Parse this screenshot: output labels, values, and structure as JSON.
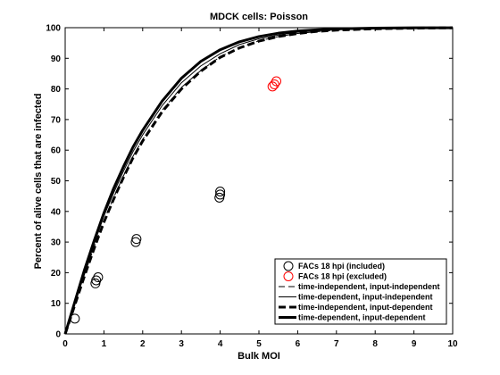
{
  "chart_data": {
    "type": "line",
    "title": "MDCK cells: Poisson",
    "xlabel": "Bulk MOI",
    "ylabel": "Percent of alive cells that are infected",
    "xlim": [
      0,
      10
    ],
    "ylim": [
      0,
      100
    ],
    "xticks": [
      "0",
      "1",
      "2",
      "3",
      "4",
      "5",
      "6",
      "7",
      "8",
      "9",
      "10"
    ],
    "yticks": [
      "0",
      "10",
      "20",
      "30",
      "40",
      "50",
      "60",
      "70",
      "80",
      "90",
      "100"
    ],
    "grid": false,
    "legend_position": "bottom-right",
    "scatter_series": [
      {
        "name": "FACs 18 hpi (included)",
        "marker": "open-circle",
        "color": "#000000",
        "points": [
          {
            "x": 0.25,
            "y": 5
          },
          {
            "x": 0.78,
            "y": 16.5
          },
          {
            "x": 0.8,
            "y": 17.5
          },
          {
            "x": 0.85,
            "y": 18.5
          },
          {
            "x": 1.82,
            "y": 30
          },
          {
            "x": 1.84,
            "y": 31
          },
          {
            "x": 3.98,
            "y": 44.5
          },
          {
            "x": 4.0,
            "y": 45.5
          },
          {
            "x": 4.0,
            "y": 46.5
          }
        ]
      },
      {
        "name": "FACs 18 hpi (excluded)",
        "marker": "open-circle",
        "color": "#ff0000",
        "points": [
          {
            "x": 5.35,
            "y": 80.8
          },
          {
            "x": 5.4,
            "y": 81.5
          },
          {
            "x": 5.45,
            "y": 82.5
          }
        ]
      }
    ],
    "line_series": [
      {
        "name": "time-independent, input-independent",
        "style": "dashed-thin",
        "x": [
          0,
          0.25,
          0.5,
          0.75,
          1,
          1.25,
          1.5,
          1.75,
          2,
          2.5,
          3,
          3.5,
          4,
          4.5,
          5,
          5.5,
          6,
          6.5,
          7,
          8,
          9,
          10
        ],
        "y": [
          0,
          10,
          19.5,
          28.5,
          37,
          44.5,
          51.5,
          58,
          63.5,
          73,
          80.5,
          86,
          90.5,
          93.5,
          95.7,
          97.1,
          98.1,
          98.7,
          99.2,
          99.6,
          99.85,
          99.95
        ]
      },
      {
        "name": "time-dependent, input-independent",
        "style": "solid-thin",
        "x": [
          0,
          0.25,
          0.5,
          0.75,
          1,
          1.25,
          1.5,
          1.75,
          2,
          2.5,
          3,
          3.5,
          4,
          4.5,
          5,
          5.5,
          6,
          6.5,
          7,
          8,
          9,
          10
        ],
        "y": [
          0,
          10.5,
          20.5,
          29.5,
          38.5,
          46,
          53,
          59.5,
          65,
          74.5,
          82,
          87.5,
          91.5,
          94.5,
          96.4,
          97.6,
          98.5,
          99,
          99.4,
          99.75,
          99.9,
          99.97
        ]
      },
      {
        "name": "time-independent, input-dependent",
        "style": "dashed-thick",
        "x": [
          0,
          0.25,
          0.5,
          0.75,
          1,
          1.25,
          1.5,
          1.75,
          2,
          2.5,
          3,
          3.5,
          4,
          4.5,
          5,
          5.5,
          6,
          6.5,
          7,
          8,
          9,
          10
        ],
        "y": [
          0,
          9.5,
          19,
          28,
          36.5,
          44,
          51,
          57.5,
          63,
          72.5,
          80,
          85.8,
          90.3,
          93.4,
          95.6,
          97.1,
          98.1,
          98.8,
          99.2,
          99.65,
          99.85,
          99.95
        ]
      },
      {
        "name": "time-dependent, input-dependent",
        "style": "solid-thick",
        "x": [
          0,
          0.25,
          0.5,
          0.75,
          1,
          1.25,
          1.5,
          1.75,
          2,
          2.5,
          3,
          3.5,
          4,
          4.5,
          5,
          5.5,
          6,
          6.5,
          7,
          8,
          9,
          10
        ],
        "y": [
          0,
          10.5,
          21,
          30.5,
          39.5,
          47.5,
          54.5,
          61,
          66.5,
          76,
          83.5,
          89,
          92.8,
          95.4,
          97.1,
          98.2,
          98.9,
          99.3,
          99.6,
          99.85,
          99.95,
          99.98
        ]
      }
    ]
  }
}
